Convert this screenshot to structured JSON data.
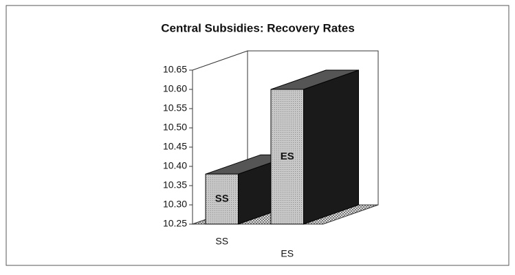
{
  "chart_data": {
    "type": "bar3d",
    "title": "Central Subsidies: Recovery Rates",
    "categories": [
      "SS",
      "ES"
    ],
    "values": [
      10.38,
      10.6
    ],
    "ylim": [
      10.25,
      10.65
    ],
    "yticks": [
      10.25,
      {
        "value": 10.3,
        "label": "10.30"
      },
      10.35,
      {
        "value": 10.4,
        "label": "10.40"
      },
      10.45,
      {
        "value": 10.5,
        "label": "10.50"
      },
      10.55,
      {
        "value": 10.6,
        "label": "10.60"
      },
      10.65
    ],
    "grid": false
  }
}
